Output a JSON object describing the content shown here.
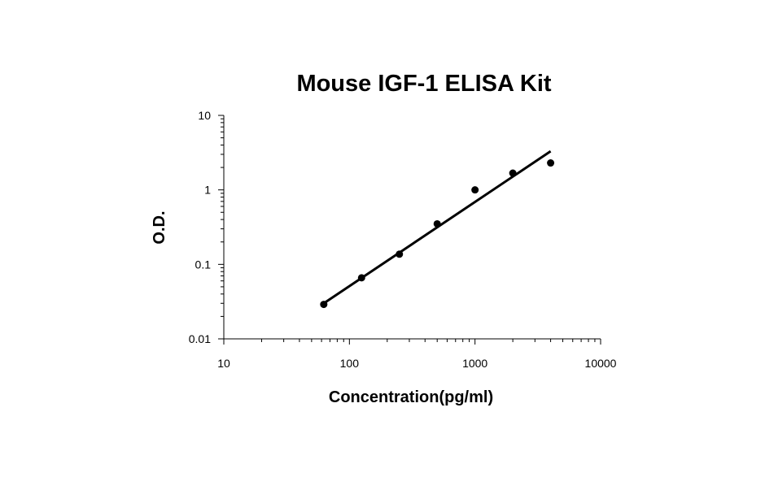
{
  "chart_data": {
    "type": "scatter",
    "title": "Mouse IGF-1 ELISA Kit",
    "xlabel": "Concentration(pg/ml)",
    "ylabel": "O.D.",
    "x_scale": "log",
    "y_scale": "log",
    "xlim": [
      10,
      10000
    ],
    "ylim": [
      0.01,
      10
    ],
    "x_ticks": [
      "10",
      "100",
      "1000",
      "10000"
    ],
    "y_ticks": [
      "0.01",
      "0.1",
      "1",
      "10"
    ],
    "grid": false,
    "legend": "none",
    "points": [
      {
        "x": 62.5,
        "y": 0.029
      },
      {
        "x": 125,
        "y": 0.066
      },
      {
        "x": 250,
        "y": 0.137
      },
      {
        "x": 500,
        "y": 0.35
      },
      {
        "x": 1000,
        "y": 1.0
      },
      {
        "x": 2000,
        "y": 1.68
      },
      {
        "x": 4000,
        "y": 2.3
      }
    ],
    "fit_line": [
      {
        "x": 62.5,
        "y": 0.03
      },
      {
        "x": 4000,
        "y": 3.3
      }
    ],
    "colors": {
      "marker": "#000000",
      "line": "#000000",
      "axis": "#000000"
    }
  }
}
